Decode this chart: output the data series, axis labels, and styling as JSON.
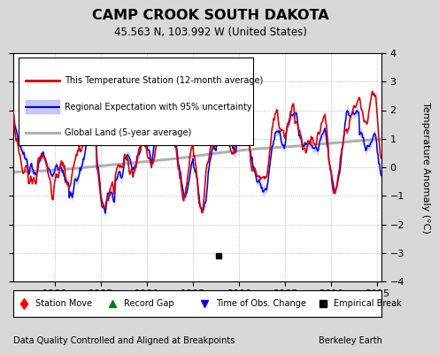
{
  "title": "CAMP CROOK SOUTH DAKOTA",
  "subtitle": "45.563 N, 103.992 W (United States)",
  "xlabel_left": "Data Quality Controlled and Aligned at Breakpoints",
  "xlabel_right": "Berkeley Earth",
  "ylabel": "Temperature Anomaly (°C)",
  "xlim": [
    1975.5,
    2015.5
  ],
  "ylim": [
    -4,
    4
  ],
  "yticks": [
    -4,
    -3,
    -2,
    -1,
    0,
    1,
    2,
    3,
    4
  ],
  "xticks": [
    1980,
    1985,
    1990,
    1995,
    2000,
    2005,
    2010,
    2015
  ],
  "legend_entries": [
    "This Temperature Station (12-month average)",
    "Regional Expectation with 95% uncertainty",
    "Global Land (5-year average)"
  ],
  "empirical_break_x": 1997.75,
  "empirical_break_y": -3.1,
  "bg_color": "#d8d8d8",
  "plot_bg_color": "#ffffff",
  "station_color": "#dd0000",
  "regional_color": "#0000dd",
  "regional_fill_color": "#b0b0ff",
  "global_color": "#b0b0b0",
  "seed": 42
}
